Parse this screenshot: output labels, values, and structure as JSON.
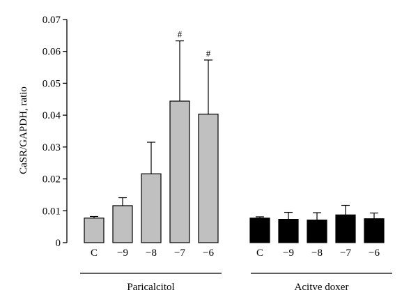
{
  "chart_data": {
    "type": "bar",
    "title": "",
    "xlabel": "",
    "ylabel": "CaSR/GAPDH, ratio",
    "ylim": [
      0,
      0.07
    ],
    "yticks": [
      "0",
      "0.01",
      "0.02",
      "0.03",
      "0.04",
      "0.05",
      "0.06",
      "0.07"
    ],
    "grid": false,
    "groups": [
      {
        "name": "Paricalcitol",
        "color": "#c0c0c0",
        "categories": [
          "C",
          "−9",
          "−8",
          "−7",
          "−6"
        ],
        "values": [
          0.0077,
          0.0116,
          0.0216,
          0.0444,
          0.0403
        ],
        "errors": [
          0.0005,
          0.0025,
          0.0099,
          0.0189,
          0.017
        ],
        "annotations": [
          "",
          "",
          "",
          "#",
          "#"
        ]
      },
      {
        "name": "Acitve doxer",
        "color": "#000000",
        "categories": [
          "C",
          "−9",
          "−8",
          "−7",
          "−6"
        ],
        "values": [
          0.0077,
          0.0073,
          0.0071,
          0.0087,
          0.0075
        ],
        "errors": [
          0.0004,
          0.0022,
          0.0023,
          0.003,
          0.0018
        ],
        "annotations": [
          "",
          "",
          "",
          "",
          ""
        ]
      }
    ]
  }
}
